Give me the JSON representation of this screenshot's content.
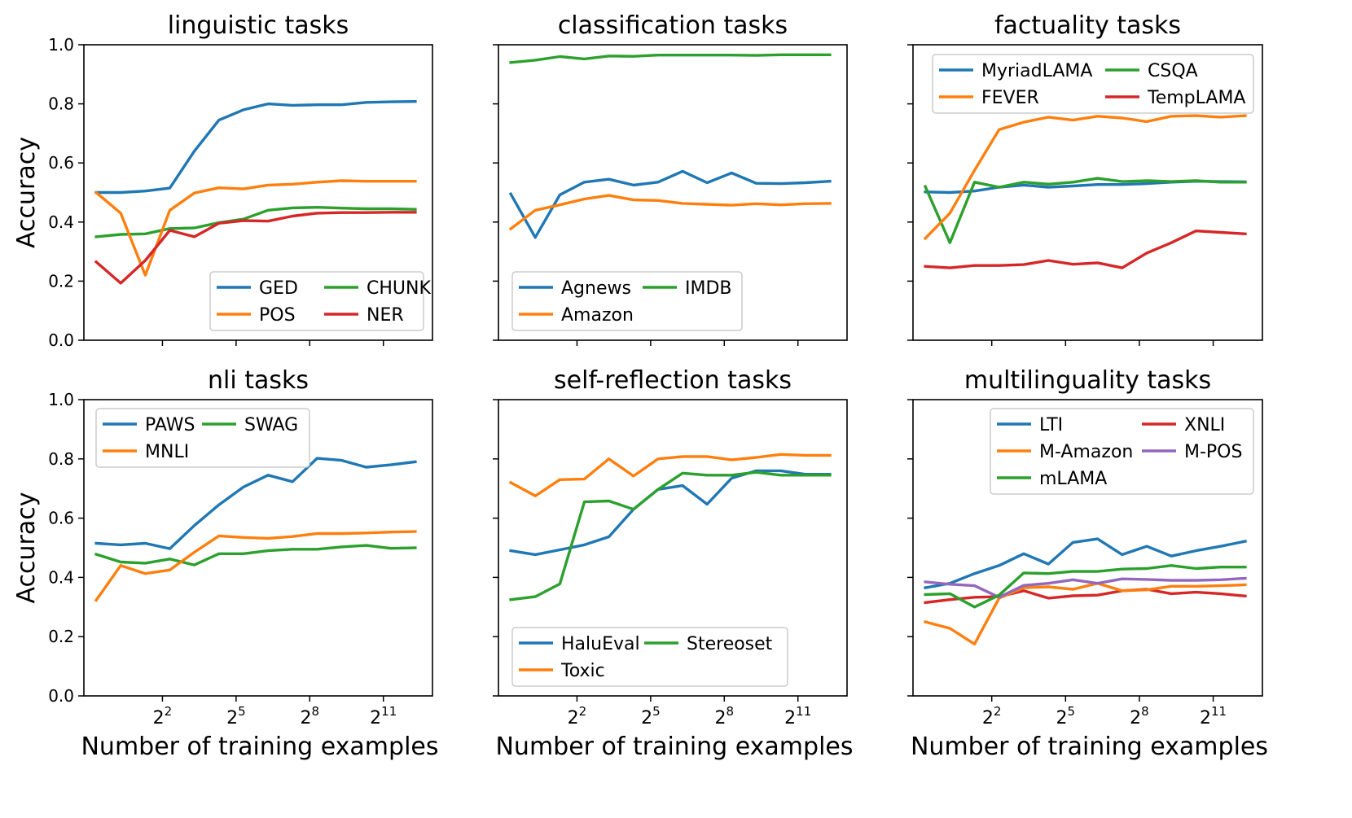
{
  "figure": {
    "ylabel": "Accuracy",
    "xlabel": "Number of training examples",
    "xticks": [
      {
        "base": "2",
        "exp": "2",
        "x": 2
      },
      {
        "base": "2",
        "exp": "5",
        "x": 5
      },
      {
        "base": "2",
        "exp": "8",
        "x": 8
      },
      {
        "base": "2",
        "exp": "11",
        "x": 11
      }
    ],
    "yticks": [
      "0.0",
      "0.2",
      "0.4",
      "0.6",
      "0.8",
      "1.0"
    ]
  },
  "colors": {
    "blue": "#1f77b4",
    "orange": "#ff7f0e",
    "green": "#2ca02c",
    "red": "#d62728",
    "purple": "#9467bd"
  },
  "chart_data": [
    {
      "type": "line",
      "title": "linguistic tasks",
      "xlabel": "",
      "ylabel": "Accuracy",
      "xscale": "log2",
      "ylim": [
        0,
        1
      ],
      "x": [
        -0.7,
        0.3,
        1.3,
        2.3,
        3.3,
        4.3,
        5.3,
        6.3,
        7.3,
        8.3,
        9.3,
        10.3,
        11.3,
        12.3
      ],
      "legend": {
        "loc": "lower-right",
        "ncol": 2
      },
      "series": [
        {
          "name": "GED",
          "color": "#1f77b4",
          "values": [
            0.5,
            0.5,
            0.505,
            0.515,
            0.64,
            0.745,
            0.78,
            0.8,
            0.795,
            0.797,
            0.797,
            0.805,
            0.807,
            0.808
          ]
        },
        {
          "name": "CHUNK",
          "color": "#2ca02c",
          "values": [
            0.35,
            0.358,
            0.36,
            0.378,
            0.38,
            0.398,
            0.41,
            0.44,
            0.448,
            0.45,
            0.447,
            0.445,
            0.445,
            0.443
          ]
        },
        {
          "name": "POS",
          "color": "#ff7f0e",
          "values": [
            0.5,
            0.43,
            0.22,
            0.44,
            0.498,
            0.516,
            0.512,
            0.525,
            0.528,
            0.535,
            0.54,
            0.538,
            0.538,
            0.538
          ]
        },
        {
          "name": "NER",
          "color": "#d62728",
          "values": [
            0.265,
            0.193,
            0.27,
            0.372,
            0.35,
            0.396,
            0.405,
            0.403,
            0.42,
            0.43,
            0.432,
            0.432,
            0.433,
            0.433
          ]
        }
      ]
    },
    {
      "type": "line",
      "title": "classification tasks",
      "xscale": "log2",
      "ylim": [
        0,
        1
      ],
      "x": [
        -0.7,
        0.3,
        1.3,
        2.3,
        3.3,
        4.3,
        5.3,
        6.3,
        7.3,
        8.3,
        9.3,
        10.3,
        11.3,
        12.3
      ],
      "legend": {
        "loc": "lower-left",
        "ncol": 2
      },
      "series": [
        {
          "name": "Agnews",
          "color": "#1f77b4",
          "values": [
            0.495,
            0.348,
            0.492,
            0.535,
            0.545,
            0.525,
            0.535,
            0.572,
            0.533,
            0.566,
            0.531,
            0.53,
            0.533,
            0.538
          ]
        },
        {
          "name": "IMDB",
          "color": "#2ca02c",
          "values": [
            0.94,
            0.948,
            0.96,
            0.952,
            0.962,
            0.961,
            0.965,
            0.965,
            0.965,
            0.965,
            0.964,
            0.966,
            0.966,
            0.966
          ]
        },
        {
          "name": "Amazon",
          "color": "#ff7f0e",
          "values": [
            0.377,
            0.44,
            0.458,
            0.478,
            0.49,
            0.475,
            0.473,
            0.463,
            0.46,
            0.457,
            0.462,
            0.458,
            0.462,
            0.463
          ]
        }
      ]
    },
    {
      "type": "line",
      "title": "factuality tasks",
      "xscale": "log2",
      "ylim": [
        0,
        1
      ],
      "x": [
        -0.7,
        0.3,
        1.3,
        2.3,
        3.3,
        4.3,
        5.3,
        6.3,
        7.3,
        8.3,
        9.3,
        10.3,
        11.3,
        12.3
      ],
      "legend": {
        "loc": "top",
        "ncol": 2
      },
      "series": [
        {
          "name": "MyriadLAMA",
          "color": "#1f77b4",
          "values": [
            0.502,
            0.5,
            0.505,
            0.518,
            0.525,
            0.518,
            0.522,
            0.527,
            0.527,
            0.53,
            0.535,
            0.538,
            0.537,
            0.536
          ]
        },
        {
          "name": "CSQA",
          "color": "#2ca02c",
          "values": [
            0.52,
            0.33,
            0.535,
            0.518,
            0.535,
            0.528,
            0.535,
            0.548,
            0.537,
            0.54,
            0.537,
            0.54,
            0.535,
            0.535
          ]
        },
        {
          "name": "FEVER",
          "color": "#ff7f0e",
          "values": [
            0.345,
            0.43,
            0.575,
            0.713,
            0.738,
            0.755,
            0.745,
            0.758,
            0.752,
            0.74,
            0.758,
            0.76,
            0.755,
            0.76
          ]
        },
        {
          "name": "TempLAMA",
          "color": "#d62728",
          "values": [
            0.25,
            0.245,
            0.253,
            0.253,
            0.256,
            0.27,
            0.257,
            0.262,
            0.245,
            0.295,
            0.33,
            0.37,
            0.365,
            0.36
          ]
        }
      ]
    },
    {
      "type": "line",
      "title": "nli tasks",
      "xlabel": "Number of training examples",
      "ylabel": "Accuracy",
      "xscale": "log2",
      "ylim": [
        0,
        1
      ],
      "x": [
        -0.7,
        0.3,
        1.3,
        2.3,
        3.3,
        4.3,
        5.3,
        6.3,
        7.3,
        8.3,
        9.3,
        10.3,
        11.3,
        12.3
      ],
      "legend": {
        "loc": "top-left",
        "ncol": 2
      },
      "series": [
        {
          "name": "PAWS",
          "color": "#1f77b4",
          "values": [
            0.515,
            0.51,
            0.515,
            0.497,
            0.575,
            0.645,
            0.705,
            0.745,
            0.723,
            0.802,
            0.795,
            0.772,
            0.78,
            0.79
          ]
        },
        {
          "name": "SWAG",
          "color": "#2ca02c",
          "values": [
            0.478,
            0.452,
            0.448,
            0.462,
            0.442,
            0.48,
            0.48,
            0.49,
            0.495,
            0.495,
            0.503,
            0.508,
            0.498,
            0.5
          ]
        },
        {
          "name": "MNLI",
          "color": "#ff7f0e",
          "values": [
            0.323,
            0.44,
            0.413,
            0.425,
            0.485,
            0.54,
            0.535,
            0.532,
            0.538,
            0.548,
            0.548,
            0.55,
            0.553,
            0.555
          ]
        }
      ]
    },
    {
      "type": "line",
      "title": "self-reflection tasks",
      "xlabel": "Number of training examples",
      "xscale": "log2",
      "ylim": [
        0,
        1
      ],
      "x": [
        -0.7,
        0.3,
        1.3,
        2.3,
        3.3,
        4.3,
        5.3,
        6.3,
        7.3,
        8.3,
        9.3,
        10.3,
        11.3,
        12.3
      ],
      "legend": {
        "loc": "lower-left",
        "ncol": 2
      },
      "series": [
        {
          "name": "HaluEval",
          "color": "#1f77b4",
          "values": [
            0.49,
            0.477,
            0.493,
            0.51,
            0.537,
            0.63,
            0.697,
            0.71,
            0.647,
            0.735,
            0.76,
            0.76,
            0.748,
            0.748
          ]
        },
        {
          "name": "Stereoset",
          "color": "#2ca02c",
          "values": [
            0.325,
            0.335,
            0.378,
            0.655,
            0.658,
            0.63,
            0.697,
            0.752,
            0.745,
            0.745,
            0.755,
            0.745,
            0.745,
            0.745
          ]
        },
        {
          "name": "Toxic",
          "color": "#ff7f0e",
          "values": [
            0.72,
            0.675,
            0.73,
            0.732,
            0.8,
            0.742,
            0.8,
            0.808,
            0.808,
            0.797,
            0.805,
            0.815,
            0.812,
            0.812
          ]
        }
      ]
    },
    {
      "type": "line",
      "title": "multilinguality tasks",
      "xlabel": "Number of training examples",
      "xscale": "log2",
      "ylim": [
        0,
        1
      ],
      "x": [
        -0.7,
        0.3,
        1.3,
        2.3,
        3.3,
        4.3,
        5.3,
        6.3,
        7.3,
        8.3,
        9.3,
        10.3,
        11.3,
        12.3
      ],
      "legend": {
        "loc": "top-right",
        "ncol": 2
      },
      "series": [
        {
          "name": "LTI",
          "color": "#1f77b4",
          "values": [
            0.365,
            0.38,
            0.413,
            0.44,
            0.48,
            0.445,
            0.518,
            0.53,
            0.477,
            0.505,
            0.472,
            0.49,
            0.505,
            0.522
          ]
        },
        {
          "name": "XNLI",
          "color": "#d62728",
          "values": [
            0.315,
            0.325,
            0.333,
            0.335,
            0.355,
            0.33,
            0.338,
            0.34,
            0.355,
            0.36,
            0.345,
            0.35,
            0.345,
            0.337
          ]
        },
        {
          "name": "M-Amazon",
          "color": "#ff7f0e",
          "values": [
            0.25,
            0.228,
            0.175,
            0.33,
            0.365,
            0.368,
            0.36,
            0.38,
            0.355,
            0.358,
            0.37,
            0.37,
            0.372,
            0.375
          ]
        },
        {
          "name": "M-POS",
          "color": "#9467bd",
          "values": [
            0.385,
            0.377,
            0.372,
            0.333,
            0.373,
            0.38,
            0.392,
            0.38,
            0.395,
            0.393,
            0.39,
            0.39,
            0.392,
            0.397
          ]
        },
        {
          "name": "mLAMA",
          "color": "#2ca02c",
          "values": [
            0.342,
            0.345,
            0.3,
            0.34,
            0.415,
            0.413,
            0.42,
            0.42,
            0.428,
            0.43,
            0.44,
            0.43,
            0.435,
            0.435
          ]
        }
      ]
    }
  ]
}
